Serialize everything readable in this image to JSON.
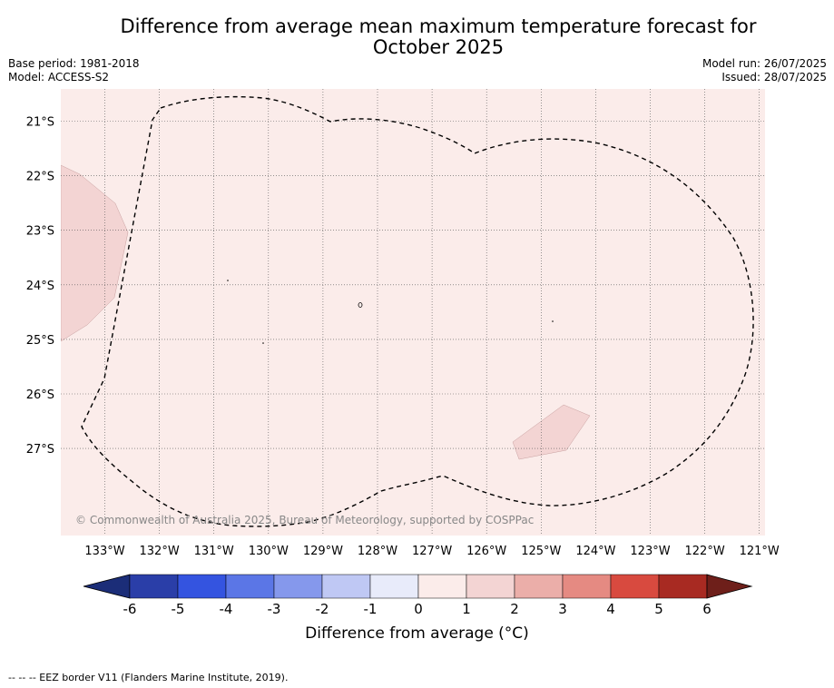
{
  "title_line1": "Difference from average mean maximum temperature forecast for",
  "title_line2": "October 2025",
  "meta_left": [
    "Base period: 1981-2018",
    "Model: ACCESS-S2"
  ],
  "meta_right": [
    "Model run: 26/07/2025",
    "Issued: 28/07/2025"
  ],
  "lat_labels": [
    "21°S",
    "22°S",
    "23°S",
    "24°S",
    "25°S",
    "26°S",
    "27°S"
  ],
  "lon_labels": [
    "133°W",
    "132°W",
    "131°W",
    "130°W",
    "129°W",
    "128°W",
    "127°W",
    "126°W",
    "125°W",
    "124°W",
    "123°W",
    "122°W",
    "121°W"
  ],
  "copyright": "© Commonwealth of Australia 2025, Bureau of Meteorology, supported by COSPPac",
  "colorbar": {
    "ticks": [
      "-6",
      "-5",
      "-4",
      "-3",
      "-2",
      "-1",
      "0",
      "1",
      "2",
      "3",
      "4",
      "5",
      "6"
    ],
    "colors": [
      "#2a3ea8",
      "#3454e0",
      "#5b76e6",
      "#8598ec",
      "#bfc8f4",
      "#e8ebfa",
      "#fbecea",
      "#f3d4d3",
      "#ebaea9",
      "#e58a82",
      "#d84a3f",
      "#a82a22"
    ],
    "extend_low_color": "#1b2d78",
    "extend_high_color": "#6e1f1a",
    "label": "Difference from average (°C)"
  },
  "map_colors": {
    "background": "#fbecea",
    "patch": "#f3d4d3"
  },
  "footer": "-- -- -- EEZ border V11 (Flanders Marine Institute, 2019)."
}
